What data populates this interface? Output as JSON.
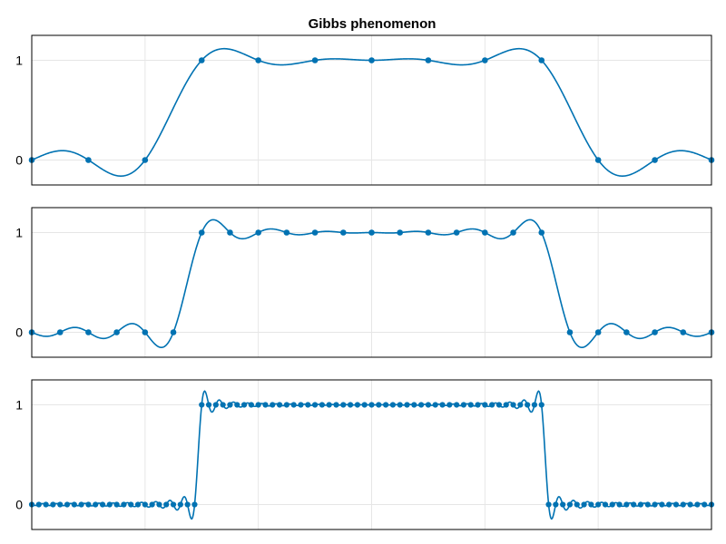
{
  "chart_data": {
    "type": "line",
    "title": "Gibbs phenomenon",
    "colors": {
      "series": "#0072b2",
      "grid": "#e6e6e6"
    },
    "panels": [
      {
        "name": "panel-n12",
        "n": 12,
        "xlim": [
          0,
          1
        ],
        "ylim": [
          -0.25,
          1.25
        ],
        "yticks": [
          0,
          1
        ],
        "xgrid": [
          0,
          0.1667,
          0.3333,
          0.5,
          0.6667,
          0.8333,
          1
        ],
        "grid": true
      },
      {
        "name": "panel-n24",
        "n": 24,
        "xlim": [
          0,
          1
        ],
        "ylim": [
          -0.25,
          1.25
        ],
        "yticks": [
          0,
          1
        ],
        "xgrid": [
          0,
          0.1667,
          0.3333,
          0.5,
          0.6667,
          0.8333,
          1
        ],
        "grid": true
      },
      {
        "name": "panel-n96",
        "n": 96,
        "xlim": [
          0,
          1
        ],
        "ylim": [
          -0.25,
          1.25
        ],
        "yticks": [
          0,
          1
        ],
        "xgrid": [
          0,
          0.1667,
          0.3333,
          0.5,
          0.6667,
          0.8333,
          1
        ],
        "grid": true
      }
    ],
    "signal": "square pulse: 1 for 0.25 <= x <= 0.75, else 0; samples shown as dots, interpolating curve shown as line"
  }
}
